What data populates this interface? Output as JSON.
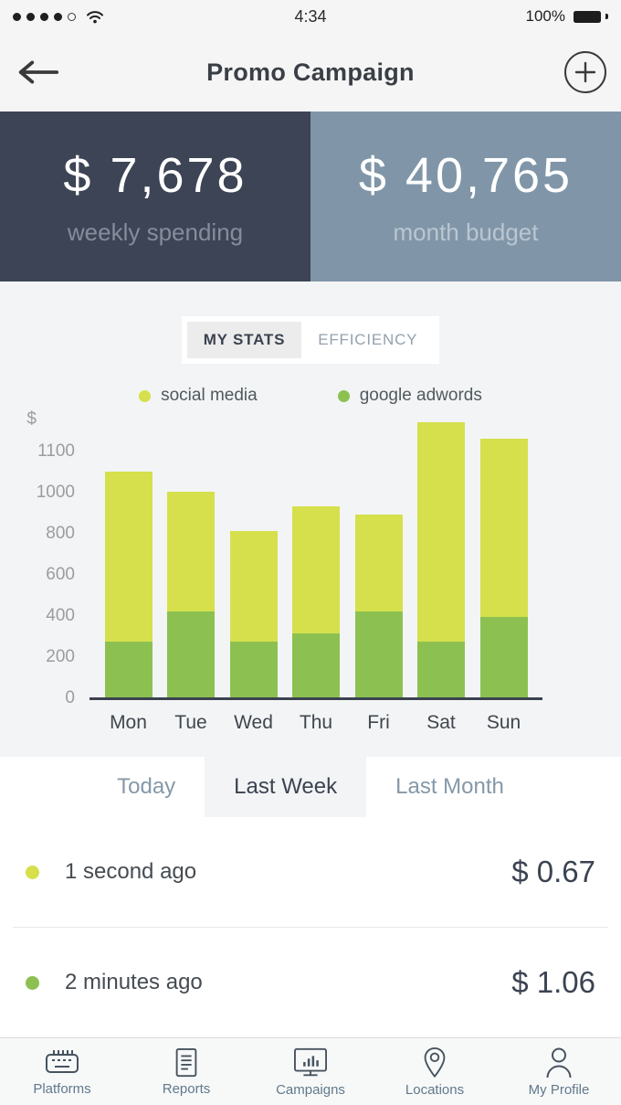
{
  "status_bar": {
    "time": "4:34",
    "battery": "100%"
  },
  "header": {
    "title": "Promo Campaign"
  },
  "summary_cards": [
    {
      "amount": "$ 7,678",
      "label": "weekly spending",
      "bg": "#3d4455"
    },
    {
      "amount": "$ 40,765",
      "label": "month budget",
      "bg": "#8096a8"
    }
  ],
  "stats_tabs": [
    {
      "label": "MY STATS",
      "active": true
    },
    {
      "label": "EFFICIENCY",
      "active": false
    }
  ],
  "legend": [
    {
      "label": "social media",
      "color": "#d5e04c"
    },
    {
      "label": "google adwords",
      "color": "#8cc152"
    }
  ],
  "chart_data": {
    "type": "bar",
    "stacked": true,
    "title": "",
    "ylabel": "$",
    "categories": [
      "Mon",
      "Tue",
      "Wed",
      "Thu",
      "Fri",
      "Sat",
      "Sun"
    ],
    "series": [
      {
        "name": "google adwords",
        "color": "#8cc152",
        "values": [
          270,
          420,
          270,
          310,
          420,
          270,
          390
        ]
      },
      {
        "name": "social media",
        "color": "#d5e04c",
        "values": [
          780,
          580,
          540,
          620,
          470,
          900,
          740
        ]
      }
    ],
    "totals": [
      1050,
      1000,
      810,
      930,
      890,
      1170,
      1130
    ],
    "yticks": [
      0,
      200,
      400,
      600,
      800,
      1000,
      1100
    ],
    "ylim": [
      0,
      1100
    ],
    "grid": false,
    "legend_position": "top"
  },
  "period_tabs": [
    {
      "label": "Today",
      "active": false
    },
    {
      "label": "Last Week",
      "active": true
    },
    {
      "label": "Last Month",
      "active": false
    }
  ],
  "transactions": [
    {
      "time": "1 second ago",
      "amount": "$ 0.67",
      "dot_color": "#d5e04c"
    },
    {
      "time": "2 minutes ago",
      "amount": "$ 1.06",
      "dot_color": "#8cc152"
    }
  ],
  "bottom_nav": [
    {
      "label": "Platforms",
      "icon": "platforms-icon"
    },
    {
      "label": "Reports",
      "icon": "reports-icon"
    },
    {
      "label": "Campaigns",
      "icon": "campaigns-icon"
    },
    {
      "label": "Locations",
      "icon": "locations-icon"
    },
    {
      "label": "My Profile",
      "icon": "my-profile-icon"
    }
  ],
  "colors": {
    "dark": "#3b4351",
    "blue_gray_text": "#8598a8",
    "chart_bg": "#f3f4f5",
    "accent_yellow": "#d5e04c",
    "accent_green": "#8cc152"
  }
}
